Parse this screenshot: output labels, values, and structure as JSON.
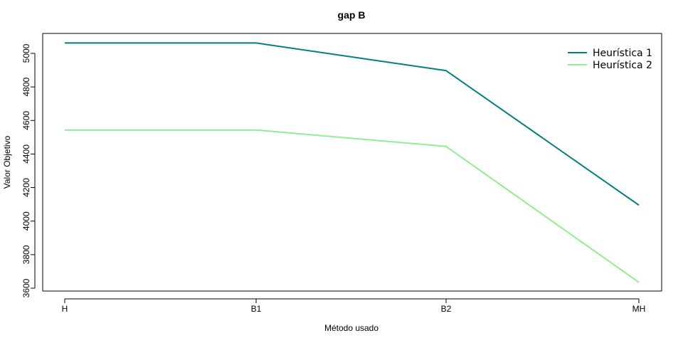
{
  "chart_data": {
    "type": "line",
    "title": "gap B",
    "xlabel": "Método usado",
    "ylabel": "Valor Objetivo",
    "categories": [
      "H",
      "B1",
      "B2",
      "MH"
    ],
    "ylim": [
      3600,
      5100
    ],
    "yticks": [
      3600,
      3800,
      4000,
      4200,
      4400,
      4600,
      4800,
      5000
    ],
    "grid": false,
    "legend_position": "top-right",
    "series": [
      {
        "name": "Heurística 1",
        "color": "#008080",
        "values": [
          5062,
          5062,
          4897,
          4095
        ]
      },
      {
        "name": "Heurística 2",
        "color": "#90EE90",
        "values": [
          4543,
          4543,
          4445,
          3635
        ]
      }
    ]
  }
}
